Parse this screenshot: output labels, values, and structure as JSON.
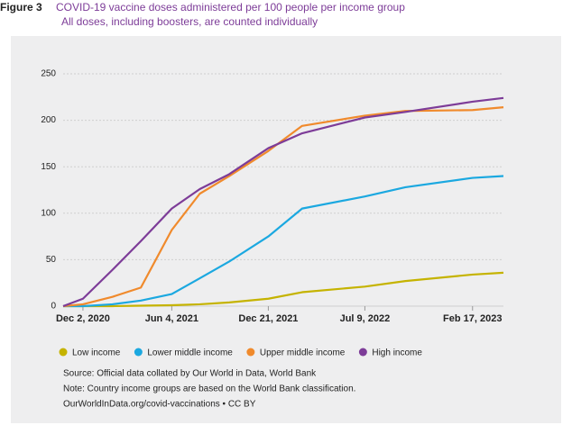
{
  "chart_data": {
    "type": "line",
    "figure_label": "Figure 3",
    "title": "COVID-19 vaccine doses administered per 100 people per income group",
    "subtitle": "All doses, including boosters, are counted individually",
    "x": [
      "Oct 22, 2020",
      "Dec 2, 2020",
      "Feb 1, 2021",
      "Apr 1, 2021",
      "Jun 4, 2021",
      "Aug 1, 2021",
      "Oct 1, 2021",
      "Dec 21, 2021",
      "Mar 1, 2022",
      "Jul 9, 2022",
      "Oct 1, 2022",
      "Feb 17, 2023",
      "Apr 22, 2023"
    ],
    "series": [
      {
        "name": "Low income",
        "color": "#c5b300",
        "values": [
          0,
          0,
          0,
          0.5,
          1,
          2,
          4,
          8,
          15,
          21,
          27,
          34,
          36
        ]
      },
      {
        "name": "Lower middle income",
        "color": "#1ba8e0",
        "values": [
          0,
          0,
          2,
          6,
          13,
          30,
          48,
          75,
          105,
          118,
          128,
          138,
          140
        ]
      },
      {
        "name": "Upper middle income",
        "color": "#f08a2c",
        "values": [
          0,
          2,
          10,
          20,
          82,
          121,
          140,
          167,
          194,
          205,
          210,
          211,
          214
        ]
      },
      {
        "name": "High income",
        "color": "#7d3c98",
        "values": [
          0,
          8,
          39,
          70,
          105,
          126,
          142,
          170,
          186,
          203,
          209,
          220,
          224
        ]
      }
    ],
    "xlim": [
      "Oct 22, 2020",
      "Apr 22, 2023"
    ],
    "xticks": [
      "Dec 2, 2020",
      "Jun 4, 2021",
      "Dec 21, 2021",
      "Jul 9, 2022",
      "Feb 17, 2023"
    ],
    "ylim": [
      0,
      250
    ],
    "yticks": [
      0,
      50,
      100,
      150,
      200,
      250
    ],
    "grid": true,
    "legend": "bottom",
    "notes": [
      "Source: Official data collated by Our World in Data, World Bank",
      "Note: Country income groups are based on the World Bank classification.",
      "OurWorldInData.org/covid-vaccinations • CC BY"
    ]
  }
}
